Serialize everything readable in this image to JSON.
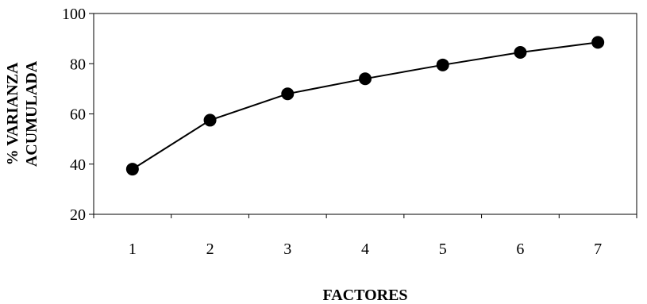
{
  "chart_data": {
    "type": "line",
    "title": "",
    "xlabel": "FACTORES",
    "ylabel": [
      "% VARIANZA",
      "ACUMULADA"
    ],
    "x": [
      1,
      2,
      3,
      4,
      5,
      6,
      7
    ],
    "series": [
      {
        "values": [
          38,
          57.5,
          68,
          74,
          79.5,
          84.5,
          88.5
        ]
      }
    ],
    "xlim": [
      0.5,
      7.5
    ],
    "ylim": [
      20,
      100
    ],
    "yticks": [
      20,
      40,
      60,
      80,
      100
    ],
    "xticks": [
      1,
      2,
      3,
      4,
      5,
      6,
      7
    ],
    "grid": false,
    "legend": "none",
    "colors": {
      "line": "#000000",
      "marker": "#000000",
      "axis": "#000000",
      "background": "#ffffff"
    }
  }
}
